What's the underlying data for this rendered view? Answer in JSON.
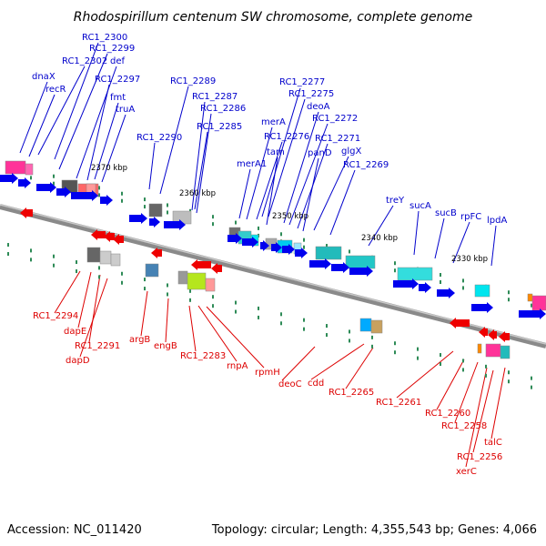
{
  "title": "Rhodospirillum centenum SW chromosome, complete genome",
  "accession": "Accession: NC_011420",
  "topology": "Topology: circular; Length: 4,355,543 bp; Genes: 4,066",
  "colors": {
    "forward_label": "#0000cc",
    "reverse_label": "#dd0000",
    "forward_gene": "#0000ee",
    "reverse_gene": "#ee0000",
    "backbone": "#808080",
    "tick": "#2e8b57"
  },
  "scale_ticks": [
    "2370 kbp",
    "2360 kbp",
    "2350 kbp",
    "2340 kbp",
    "2330 kbp"
  ],
  "forward_genes": [
    "RC1_2300",
    "RC1_2299",
    "RC1_2302",
    "def",
    "dnaX",
    "RC1_2297",
    "recR",
    "fmt",
    "truA",
    "RC1_2289",
    "RC1_2287",
    "RC1_2286",
    "RC1_2290",
    "RC1_2285",
    "RC1_2277",
    "RC1_2275",
    "deoA",
    "merA",
    "RC1_2272",
    "RC1_2276",
    "tam",
    "RC1_2271",
    "panD",
    "glgX",
    "merA1",
    "RC1_2269",
    "treY",
    "sucA",
    "sucB",
    "rpFC",
    "lpdA"
  ],
  "reverse_genes": [
    "RC1_2294",
    "dapE",
    "RC1_2291",
    "dapD",
    "argB",
    "engB",
    "RC1_2283",
    "rnpA",
    "rpmH",
    "deoC",
    "cdd",
    "RC1_2265",
    "RC1_2261",
    "RC1_2260",
    "RC1_2258",
    "talC",
    "RC1_2256",
    "xerC"
  ]
}
